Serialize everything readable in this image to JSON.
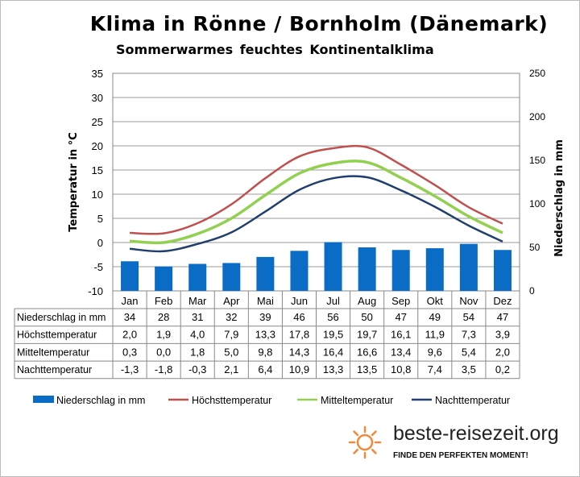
{
  "chart_data": {
    "type": "bar+line",
    "title": "Klima in Rönne / Bornholm (Dänemark)",
    "subtitle": "Sommerwarmes feuchtes Kontinentalklima",
    "ylabel": "Temperatur in °C",
    "y2label": "Niederschlag in mm",
    "ylim": [
      -10,
      35
    ],
    "y2lim": [
      0,
      250
    ],
    "yticks": [
      35,
      30,
      25,
      20,
      15,
      10,
      5,
      0,
      -5,
      -10
    ],
    "y2ticks": [
      250,
      200,
      150,
      100,
      50,
      0
    ],
    "grid": true,
    "legend": "bottom",
    "categories": [
      "Jan",
      "Feb",
      "Mar",
      "Apr",
      "Mai",
      "Jun",
      "Jul",
      "Aug",
      "Sep",
      "Okt",
      "Nov",
      "Dez"
    ],
    "series": [
      {
        "name": "Niederschlag in mm",
        "type": "bar",
        "axis": "right",
        "color": "#0a6cc4",
        "values": [
          34,
          28,
          31,
          32,
          39,
          46,
          56,
          50,
          47,
          49,
          54,
          47
        ],
        "labels": [
          "34",
          "28",
          "31",
          "32",
          "39",
          "46",
          "56",
          "50",
          "47",
          "49",
          "54",
          "47"
        ]
      },
      {
        "name": "Höchsttemperatur",
        "type": "line",
        "color": "#c0504d",
        "values": [
          2.0,
          1.9,
          4.0,
          7.9,
          13.3,
          17.8,
          19.5,
          19.7,
          16.1,
          11.9,
          7.3,
          3.9
        ],
        "labels": [
          "2,0",
          "1,9",
          "4,0",
          "7,9",
          "13,3",
          "17,8",
          "19,5",
          "19,7",
          "16,1",
          "11,9",
          "7,3",
          "3,9"
        ]
      },
      {
        "name": "Mitteltemperatur",
        "type": "line",
        "color": "#92d050",
        "values": [
          0.3,
          0.0,
          1.8,
          5.0,
          9.8,
          14.3,
          16.4,
          16.6,
          13.4,
          9.6,
          5.4,
          2.0
        ],
        "labels": [
          "0,3",
          "0,0",
          "1,8",
          "5,0",
          "9,8",
          "14,3",
          "16,4",
          "16,6",
          "13,4",
          "9,6",
          "5,4",
          "2,0"
        ]
      },
      {
        "name": "Nachttemperatur",
        "type": "line",
        "color": "#1f3f6e",
        "values": [
          -1.3,
          -1.8,
          -0.3,
          2.1,
          6.4,
          10.9,
          13.3,
          13.5,
          10.8,
          7.4,
          3.5,
          0.2
        ],
        "labels": [
          "-1,3",
          "-1,8",
          "-0,3",
          "2,1",
          "6,4",
          "10,9",
          "13,3",
          "13,5",
          "10,8",
          "7,4",
          "3,5",
          "0,2"
        ]
      }
    ]
  },
  "logo": {
    "text": "beste-reisezeit.org",
    "tagline": "FINDE DEN PERFEKTEN MOMENT!",
    "color": "#f08a3c"
  }
}
